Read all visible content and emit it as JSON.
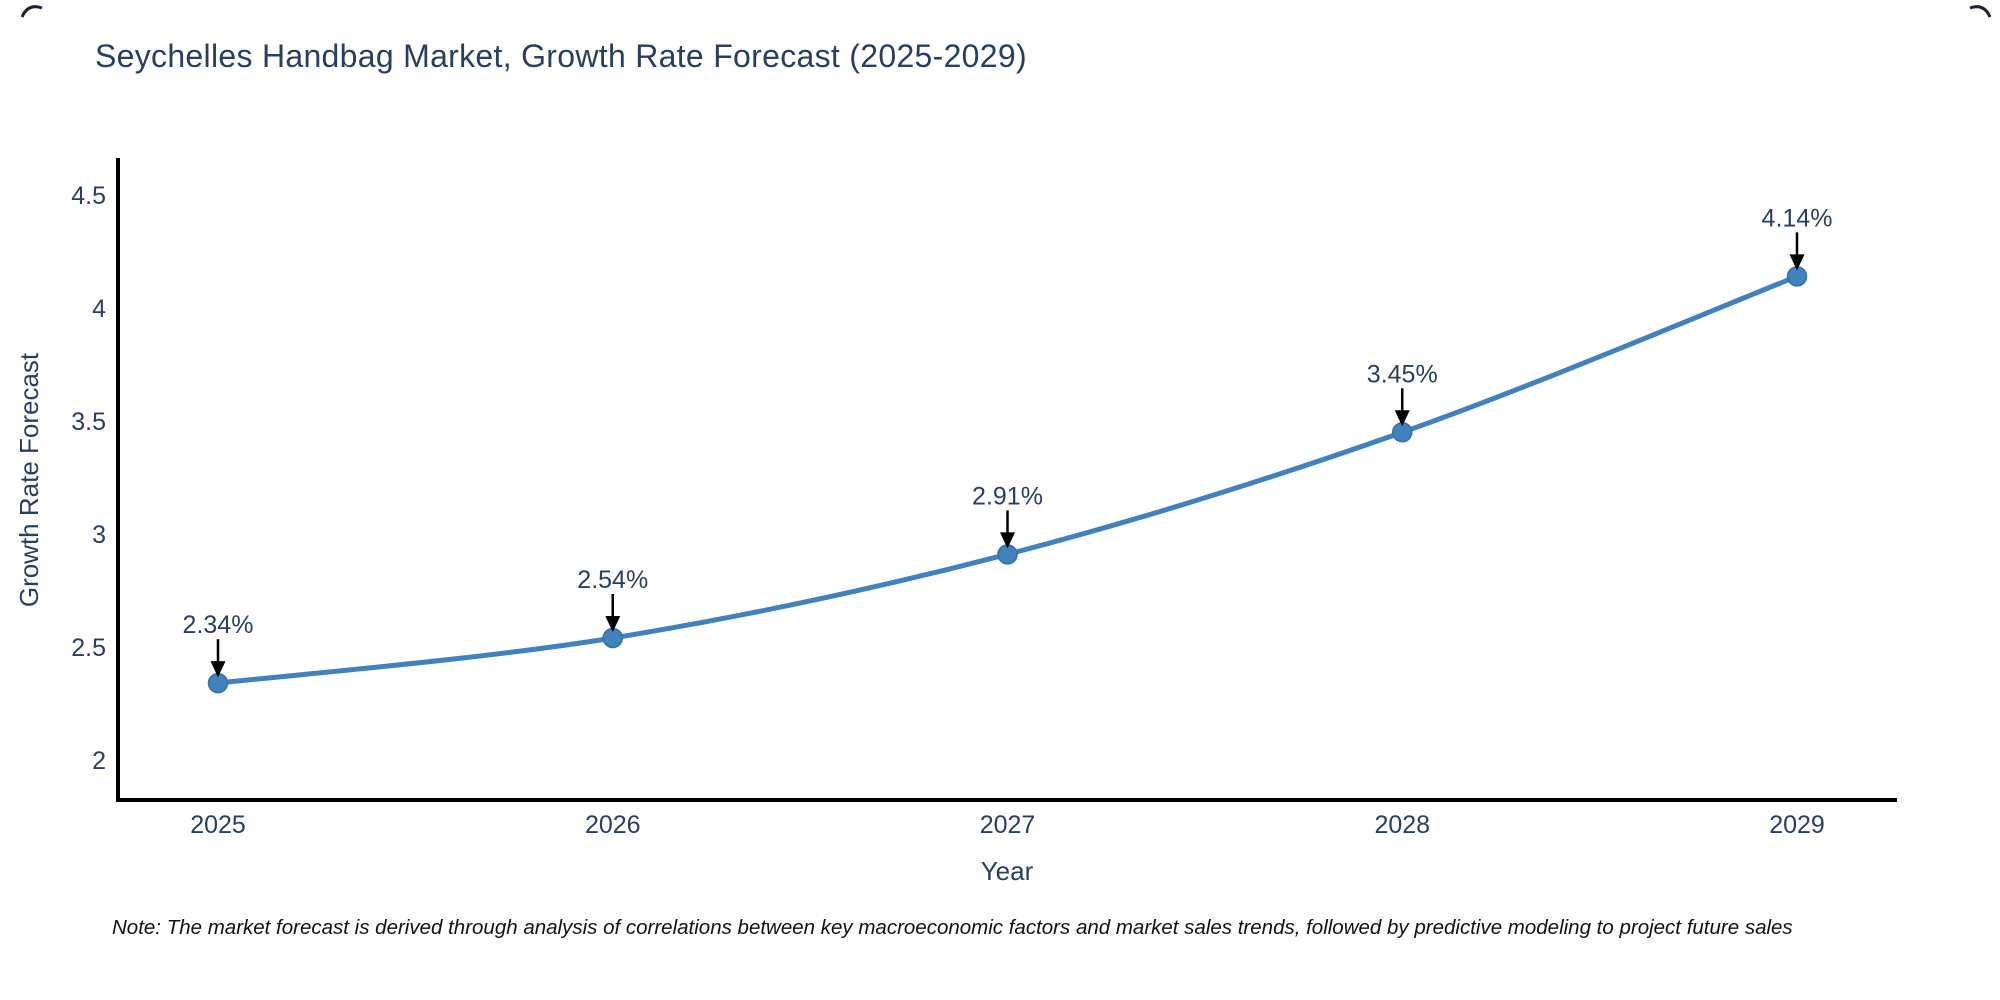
{
  "title": "Seychelles Handbag Market, Growth Rate Forecast (2025-2029)",
  "note": "Note: The market forecast is derived through analysis of correlations between key macroeconomic factors and market sales trends, followed by predictive modeling to project future sales",
  "colors": {
    "line": "#4181bd",
    "marker_fill": "#4181bd",
    "marker_edge": "#33719f",
    "text": "#2a3f5f",
    "axis": "#000000",
    "arrow": "#000000",
    "note_text": "#111111",
    "background": "#ffffff"
  },
  "chart_data": {
    "type": "line",
    "title": "Seychelles Handbag Market, Growth Rate Forecast (2025-2029)",
    "x": [
      2025,
      2026,
      2027,
      2028,
      2029
    ],
    "values": [
      2.34,
      2.54,
      2.91,
      3.45,
      4.14
    ],
    "point_labels": [
      "2.34%",
      "2.54%",
      "2.91%",
      "3.45%",
      "4.14%"
    ],
    "xlabel": "Year",
    "ylabel": "Growth Rate Forecast",
    "xticks": [
      "2025",
      "2026",
      "2027",
      "2028",
      "2029"
    ],
    "yticks": [
      2,
      2.5,
      3,
      3.5,
      4,
      4.5
    ],
    "ylim": [
      1.82,
      4.66
    ],
    "grid": false,
    "legend": "none",
    "line_shape": "spline",
    "annotations": "black arrows pointing down from each percentage label to its data point"
  }
}
